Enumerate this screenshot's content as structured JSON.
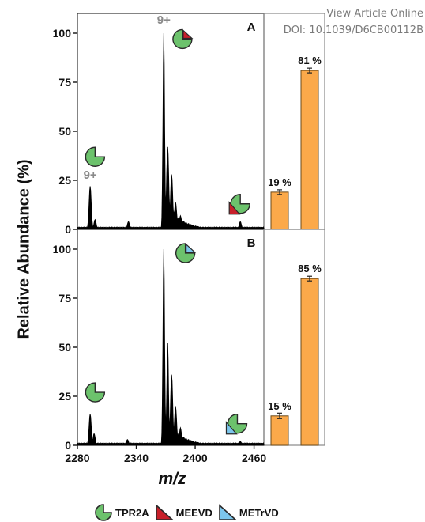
{
  "watermark": {
    "line1": "View Article Online",
    "line2": "DOI: 10.1039/D6CB00112B"
  },
  "colors": {
    "tpr2a": "#6cc26c",
    "meevd": "#c8202a",
    "metrvd": "#7cc6ec",
    "bar": "#fba94a",
    "spectrum": "#000000"
  },
  "chart_data": [
    {
      "type": "line",
      "panel_label": "A",
      "ylabel": "Relative Abundance (%)",
      "xlabel": "",
      "xlim": [
        2280,
        2470
      ],
      "ylim": [
        0,
        100
      ],
      "yticks": [
        "0",
        "25",
        "50",
        "75",
        "100"
      ],
      "peaks": [
        {
          "x": 2293,
          "y": 22
        },
        {
          "x": 2298,
          "y": 5
        },
        {
          "x": 2332,
          "y": 4
        },
        {
          "x": 2368,
          "y": 100
        },
        {
          "x": 2372,
          "y": 42
        },
        {
          "x": 2376,
          "y": 28
        },
        {
          "x": 2380,
          "y": 14
        },
        {
          "x": 2385,
          "y": 7
        },
        {
          "x": 2446,
          "y": 4
        }
      ],
      "peak_labels": [
        {
          "text": "9+",
          "x": 2368,
          "y": 104
        },
        {
          "text": "9+",
          "x": 2293,
          "y": 25
        }
      ],
      "icons": [
        {
          "name": "tpr2a-meevd-icon",
          "x": 2387,
          "y": 97,
          "parts": [
            "tpr2a",
            "meevd"
          ]
        },
        {
          "name": "tpr2a-icon",
          "x": 2298,
          "y": 37,
          "parts": [
            "tpr2a"
          ]
        },
        {
          "name": "tpr2a-meevd-icon",
          "x": 2446,
          "y": 13,
          "parts": [
            "tpr2a",
            "meevd"
          ]
        }
      ]
    },
    {
      "type": "bar",
      "panel_label": "A",
      "categories": [
        "",
        ""
      ],
      "values": [
        19,
        81
      ],
      "errors": [
        0.8,
        0.8
      ],
      "labels": [
        "19 %",
        "81 %"
      ],
      "ylim": [
        0,
        100
      ]
    },
    {
      "type": "line",
      "panel_label": "B",
      "xlabel": "m/z",
      "xlim": [
        2280,
        2470
      ],
      "ylim": [
        0,
        100
      ],
      "xticks": [
        "2280",
        "2340",
        "2400",
        "2460"
      ],
      "yticks": [
        "0",
        "25",
        "50",
        "75",
        "100"
      ],
      "peaks": [
        {
          "x": 2293,
          "y": 16
        },
        {
          "x": 2297,
          "y": 6
        },
        {
          "x": 2331,
          "y": 3
        },
        {
          "x": 2368,
          "y": 100
        },
        {
          "x": 2372,
          "y": 52
        },
        {
          "x": 2376,
          "y": 36
        },
        {
          "x": 2380,
          "y": 20
        },
        {
          "x": 2385,
          "y": 9
        },
        {
          "x": 2446,
          "y": 2
        }
      ],
      "icons": [
        {
          "name": "tpr2a-metrvd-icon",
          "x": 2390,
          "y": 98,
          "parts": [
            "tpr2a",
            "metrvd"
          ]
        },
        {
          "name": "tpr2a-icon",
          "x": 2298,
          "y": 27,
          "parts": [
            "tpr2a"
          ]
        },
        {
          "name": "tpr2a-metrvd-icon",
          "x": 2443,
          "y": 11,
          "parts": [
            "tpr2a",
            "metrvd"
          ]
        }
      ]
    },
    {
      "type": "bar",
      "panel_label": "B",
      "categories": [
        "",
        ""
      ],
      "values": [
        15,
        85
      ],
      "errors": [
        1.0,
        0.8
      ],
      "labels": [
        "15 %",
        "85 %"
      ],
      "ylim": [
        0,
        100
      ]
    }
  ],
  "legend": [
    {
      "key": "tpr2a",
      "label": "TPR2A"
    },
    {
      "key": "meevd",
      "label": "MEEVD"
    },
    {
      "key": "metrvd",
      "label": "METrVD"
    }
  ]
}
